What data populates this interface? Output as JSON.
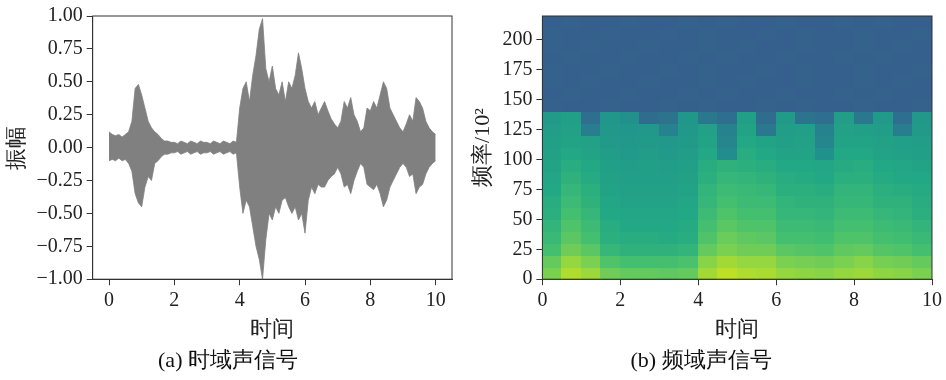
{
  "chart_data": [
    {
      "type": "area",
      "title": "(a) 时域声信号",
      "xlabel": "时间",
      "ylabel": "振幅",
      "color": "#808080",
      "grid": false,
      "xlim": [
        -0.5,
        10.5
      ],
      "xticks": [
        0,
        2,
        4,
        6,
        8,
        10
      ],
      "ylim": [
        -1,
        1
      ],
      "yticks": [
        {
          "value": -1,
          "label": "−1.00"
        },
        {
          "value": -0.75,
          "label": "−0.75"
        },
        {
          "value": -0.5,
          "label": "−0.50"
        },
        {
          "value": -0.25,
          "label": "−0.25"
        },
        {
          "value": 0,
          "label": "0.00"
        },
        0.25,
        {
          "value": 0.5,
          "label": "0.50"
        },
        0.75,
        {
          "value": 1,
          "label": "1.00"
        }
      ],
      "x": [
        0,
        0.1,
        0.2,
        0.3,
        0.4,
        0.5,
        0.6,
        0.7,
        0.8,
        0.9,
        1,
        1.1,
        1.2,
        1.3,
        1.4,
        1.5,
        1.6,
        1.7,
        1.8,
        1.9,
        2,
        2.1,
        2.2,
        2.3,
        2.4,
        2.5,
        2.6,
        2.7,
        2.8,
        2.9,
        3,
        3.1,
        3.2,
        3.3,
        3.4,
        3.5,
        3.6,
        3.7,
        3.8,
        3.9,
        4,
        4.1,
        4.2,
        4.3,
        4.4,
        4.5,
        4.6,
        4.7,
        4.8,
        4.9,
        5,
        5.1,
        5.2,
        5.3,
        5.4,
        5.5,
        5.6,
        5.7,
        5.8,
        5.9,
        6,
        6.1,
        6.2,
        6.3,
        6.4,
        6.5,
        6.6,
        6.7,
        6.8,
        6.9,
        7,
        7.1,
        7.2,
        7.3,
        7.4,
        7.5,
        7.6,
        7.7,
        7.8,
        7.9,
        8,
        8.1,
        8.2,
        8.3,
        8.4,
        8.5,
        8.6,
        8.7,
        8.8,
        8.9,
        9,
        9.1,
        9.2,
        9.3,
        9.4,
        9.5,
        9.6,
        9.7,
        9.8,
        9.9,
        10
      ],
      "values_max": [
        0.12,
        0.1,
        0.09,
        0.1,
        0.08,
        0.1,
        0.12,
        0.2,
        0.45,
        0.48,
        0.4,
        0.3,
        0.2,
        0.15,
        0.12,
        0.1,
        0.07,
        0.05,
        0.05,
        0.04,
        0.04,
        0.03,
        0.05,
        0.04,
        0.03,
        0.05,
        0.04,
        0.03,
        0.05,
        0.04,
        0.04,
        0.03,
        0.05,
        0.04,
        0.03,
        0.05,
        0.04,
        0.03,
        0.05,
        0.04,
        0.3,
        0.45,
        0.5,
        0.35,
        0.55,
        0.7,
        0.9,
        0.98,
        0.6,
        0.5,
        0.62,
        0.45,
        0.4,
        0.5,
        0.35,
        0.5,
        0.45,
        0.55,
        0.72,
        0.6,
        0.45,
        0.35,
        0.3,
        0.35,
        0.25,
        0.3,
        0.35,
        0.28,
        0.22,
        0.18,
        0.15,
        0.2,
        0.35,
        0.3,
        0.38,
        0.25,
        0.2,
        0.12,
        0.15,
        0.3,
        0.28,
        0.35,
        0.3,
        0.4,
        0.5,
        0.45,
        0.3,
        0.25,
        0.2,
        0.15,
        0.12,
        0.18,
        0.25,
        0.2,
        0.38,
        0.35,
        0.3,
        0.2,
        0.15,
        0.12,
        0.1
      ],
      "values_min": [
        -0.1,
        -0.09,
        -0.1,
        -0.08,
        -0.1,
        -0.09,
        -0.12,
        -0.18,
        -0.35,
        -0.42,
        -0.45,
        -0.3,
        -0.22,
        -0.25,
        -0.12,
        -0.1,
        -0.07,
        -0.05,
        -0.05,
        -0.04,
        -0.04,
        -0.03,
        -0.05,
        -0.04,
        -0.03,
        -0.05,
        -0.04,
        -0.03,
        -0.05,
        -0.04,
        -0.04,
        -0.03,
        -0.05,
        -0.04,
        -0.03,
        -0.05,
        -0.04,
        -0.03,
        -0.05,
        -0.04,
        -0.3,
        -0.5,
        -0.4,
        -0.45,
        -0.6,
        -0.75,
        -0.85,
        -1,
        -0.7,
        -0.5,
        -0.55,
        -0.45,
        -0.5,
        -0.4,
        -0.38,
        -0.45,
        -0.5,
        -0.45,
        -0.55,
        -0.5,
        -0.65,
        -0.4,
        -0.3,
        -0.35,
        -0.28,
        -0.3,
        -0.3,
        -0.25,
        -0.22,
        -0.2,
        -0.15,
        -0.2,
        -0.3,
        -0.28,
        -0.35,
        -0.25,
        -0.18,
        -0.12,
        -0.15,
        -0.28,
        -0.3,
        -0.32,
        -0.28,
        -0.35,
        -0.45,
        -0.4,
        -0.3,
        -0.25,
        -0.2,
        -0.15,
        -0.12,
        -0.15,
        -0.22,
        -0.2,
        -0.35,
        -0.3,
        -0.28,
        -0.2,
        -0.15,
        -0.12,
        -0.1
      ]
    },
    {
      "type": "heatmap",
      "title": "(b) 频域声信号",
      "xlabel": "时间",
      "ylabel": "频率/10²",
      "grid": false,
      "xlim": [
        0,
        10
      ],
      "xticks": [
        0,
        2,
        4,
        6,
        8,
        10
      ],
      "ylim": [
        0,
        220
      ],
      "yticks": [
        0,
        25,
        50,
        75,
        100,
        125,
        150,
        175,
        200
      ],
      "x_bins": [
        0,
        0.5,
        1,
        1.5,
        2,
        2.5,
        3,
        3.5,
        4,
        4.5,
        5,
        5.5,
        6,
        6.5,
        7,
        7.5,
        8,
        8.5,
        9,
        9.5,
        10
      ],
      "y_bins": [
        0,
        10,
        20,
        30,
        40,
        50,
        60,
        70,
        80,
        90,
        100,
        110,
        120,
        130,
        140,
        150,
        160,
        170,
        180,
        190,
        200,
        210,
        220
      ],
      "cells": [
        [
          0.8,
          0.88,
          0.85,
          0.78,
          0.76,
          0.76,
          0.75,
          0.76,
          0.86,
          0.9,
          0.88,
          0.87,
          0.84,
          0.83,
          0.82,
          0.84,
          0.85,
          0.83,
          0.82,
          0.8
        ],
        [
          0.76,
          0.84,
          0.8,
          0.72,
          0.7,
          0.7,
          0.7,
          0.71,
          0.82,
          0.86,
          0.84,
          0.84,
          0.8,
          0.79,
          0.78,
          0.8,
          0.82,
          0.79,
          0.78,
          0.76
        ],
        [
          0.7,
          0.78,
          0.74,
          0.66,
          0.64,
          0.64,
          0.64,
          0.65,
          0.76,
          0.8,
          0.78,
          0.78,
          0.74,
          0.73,
          0.72,
          0.75,
          0.76,
          0.73,
          0.72,
          0.7
        ],
        [
          0.67,
          0.74,
          0.7,
          0.63,
          0.62,
          0.62,
          0.61,
          0.62,
          0.72,
          0.77,
          0.75,
          0.74,
          0.7,
          0.7,
          0.69,
          0.72,
          0.72,
          0.7,
          0.69,
          0.67
        ],
        [
          0.65,
          0.72,
          0.68,
          0.62,
          0.6,
          0.6,
          0.6,
          0.61,
          0.7,
          0.74,
          0.72,
          0.72,
          0.68,
          0.68,
          0.67,
          0.7,
          0.7,
          0.68,
          0.67,
          0.65
        ],
        [
          0.63,
          0.7,
          0.66,
          0.6,
          0.59,
          0.59,
          0.59,
          0.6,
          0.68,
          0.72,
          0.7,
          0.7,
          0.66,
          0.66,
          0.65,
          0.68,
          0.68,
          0.66,
          0.65,
          0.63
        ],
        [
          0.62,
          0.68,
          0.64,
          0.59,
          0.58,
          0.58,
          0.58,
          0.59,
          0.66,
          0.7,
          0.68,
          0.68,
          0.65,
          0.64,
          0.64,
          0.66,
          0.66,
          0.64,
          0.64,
          0.62
        ],
        [
          0.6,
          0.66,
          0.63,
          0.58,
          0.57,
          0.57,
          0.57,
          0.58,
          0.65,
          0.68,
          0.67,
          0.66,
          0.63,
          0.63,
          0.62,
          0.65,
          0.65,
          0.63,
          0.62,
          0.61
        ],
        [
          0.59,
          0.64,
          0.61,
          0.57,
          0.56,
          0.56,
          0.56,
          0.57,
          0.63,
          0.66,
          0.65,
          0.64,
          0.62,
          0.61,
          0.6,
          0.63,
          0.63,
          0.61,
          0.6,
          0.6
        ],
        [
          0.58,
          0.62,
          0.6,
          0.56,
          0.55,
          0.56,
          0.55,
          0.56,
          0.62,
          0.64,
          0.63,
          0.62,
          0.6,
          0.6,
          0.59,
          0.61,
          0.62,
          0.6,
          0.59,
          0.58
        ],
        [
          0.57,
          0.6,
          0.58,
          0.55,
          0.54,
          0.55,
          0.54,
          0.55,
          0.6,
          0.48,
          0.62,
          0.6,
          0.58,
          0.58,
          0.5,
          0.6,
          0.6,
          0.58,
          0.57,
          0.56
        ],
        [
          0.56,
          0.58,
          0.57,
          0.54,
          0.53,
          0.54,
          0.53,
          0.54,
          0.58,
          0.45,
          0.6,
          0.58,
          0.56,
          0.57,
          0.46,
          0.58,
          0.58,
          0.57,
          0.56,
          0.55
        ],
        [
          0.55,
          0.57,
          0.42,
          0.53,
          0.52,
          0.53,
          0.44,
          0.53,
          0.57,
          0.44,
          0.58,
          0.4,
          0.55,
          0.56,
          0.44,
          0.57,
          0.56,
          0.55,
          0.42,
          0.54
        ],
        [
          0.54,
          0.56,
          0.36,
          0.52,
          0.5,
          0.35,
          0.38,
          0.52,
          0.4,
          0.36,
          0.56,
          0.35,
          0.54,
          0.38,
          0.36,
          0.55,
          0.4,
          0.54,
          0.36,
          0.53
        ],
        [
          0.31,
          0.3,
          0.3,
          0.31,
          0.3,
          0.3,
          0.31,
          0.3,
          0.31,
          0.3,
          0.3,
          0.31,
          0.3,
          0.31,
          0.3,
          0.3,
          0.31,
          0.3,
          0.3,
          0.31
        ],
        [
          0.3,
          0.31,
          0.3,
          0.3,
          0.31,
          0.3,
          0.3,
          0.31,
          0.3,
          0.31,
          0.3,
          0.3,
          0.31,
          0.3,
          0.3,
          0.31,
          0.3,
          0.31,
          0.3,
          0.3
        ],
        [
          0.31,
          0.3,
          0.31,
          0.3,
          0.3,
          0.31,
          0.3,
          0.3,
          0.31,
          0.3,
          0.31,
          0.3,
          0.3,
          0.31,
          0.3,
          0.3,
          0.31,
          0.3,
          0.31,
          0.3
        ],
        [
          0.31,
          0.3,
          0.3,
          0.31,
          0.3,
          0.3,
          0.31,
          0.3,
          0.31,
          0.3,
          0.3,
          0.31,
          0.3,
          0.31,
          0.3,
          0.3,
          0.31,
          0.3,
          0.3,
          0.31
        ],
        [
          0.3,
          0.31,
          0.3,
          0.3,
          0.31,
          0.3,
          0.3,
          0.31,
          0.3,
          0.31,
          0.3,
          0.3,
          0.31,
          0.3,
          0.3,
          0.31,
          0.3,
          0.31,
          0.3,
          0.3
        ],
        [
          0.31,
          0.3,
          0.31,
          0.3,
          0.3,
          0.31,
          0.3,
          0.3,
          0.31,
          0.3,
          0.31,
          0.3,
          0.3,
          0.31,
          0.3,
          0.3,
          0.31,
          0.3,
          0.31,
          0.3
        ],
        [
          0.31,
          0.3,
          0.3,
          0.31,
          0.3,
          0.3,
          0.31,
          0.3,
          0.31,
          0.3,
          0.3,
          0.31,
          0.3,
          0.31,
          0.3,
          0.3,
          0.31,
          0.3,
          0.3,
          0.31
        ],
        [
          0.3,
          0.31,
          0.3,
          0.3,
          0.31,
          0.3,
          0.3,
          0.31,
          0.3,
          0.31,
          0.3,
          0.3,
          0.31,
          0.3,
          0.3,
          0.31,
          0.3,
          0.31,
          0.3,
          0.3
        ]
      ]
    }
  ]
}
